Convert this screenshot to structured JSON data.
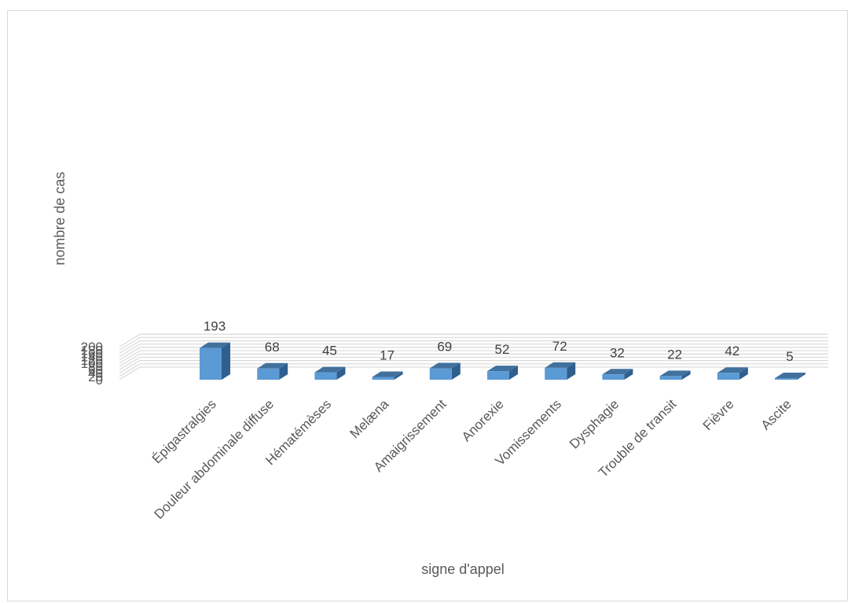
{
  "chart_data": {
    "type": "bar",
    "style": "3d-column",
    "categories": [
      "Épigastralgies",
      "Douleur abdominale diffuse",
      "Hématémèses",
      "Melæna",
      "Amaigrissement",
      "Anorexie",
      "Vomissements",
      "Dysphagie",
      "Trouble de transit",
      "Fièvre",
      "Ascite"
    ],
    "values": [
      193,
      68,
      45,
      17,
      69,
      52,
      72,
      32,
      22,
      42,
      5
    ],
    "data_labels": [
      "193",
      "68",
      "45",
      "17",
      "69",
      "52",
      "72",
      "32",
      "22",
      "42",
      "5"
    ],
    "title": "",
    "xlabel": "signe d'appel",
    "ylabel": "nombre de cas",
    "ylim": [
      0,
      200
    ],
    "yticks": [
      "0",
      "20",
      "40",
      "60",
      "80",
      "100",
      "120",
      "140",
      "160",
      "180",
      "200"
    ],
    "grid": true,
    "legend": "none",
    "colors": {
      "bar_front": "#5b9bd5",
      "bar_side": "#2e5f8e",
      "bar_top": "#41719c",
      "grid": "#d9d9d9"
    }
  }
}
